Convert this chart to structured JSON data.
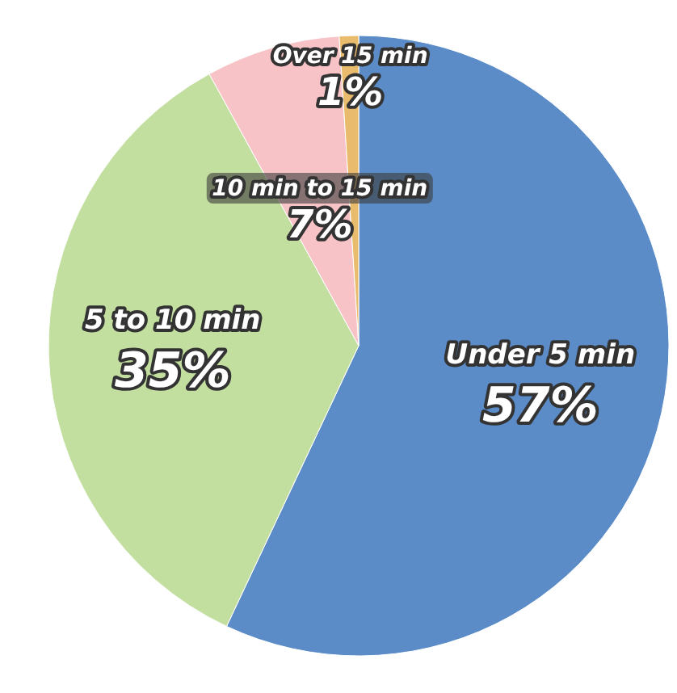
{
  "chart_data": {
    "type": "pie",
    "categories": [
      "Under 5 min",
      "5 to 10 min",
      "10 min to 15 min",
      "Over 15 min"
    ],
    "values": [
      57,
      35,
      7,
      1
    ],
    "colors": [
      "#5b8cc8",
      "#c3dfa0",
      "#f8c3c7",
      "#e9bb6c"
    ],
    "value_labels": [
      "57%",
      "35%",
      "7%",
      "1%"
    ]
  }
}
